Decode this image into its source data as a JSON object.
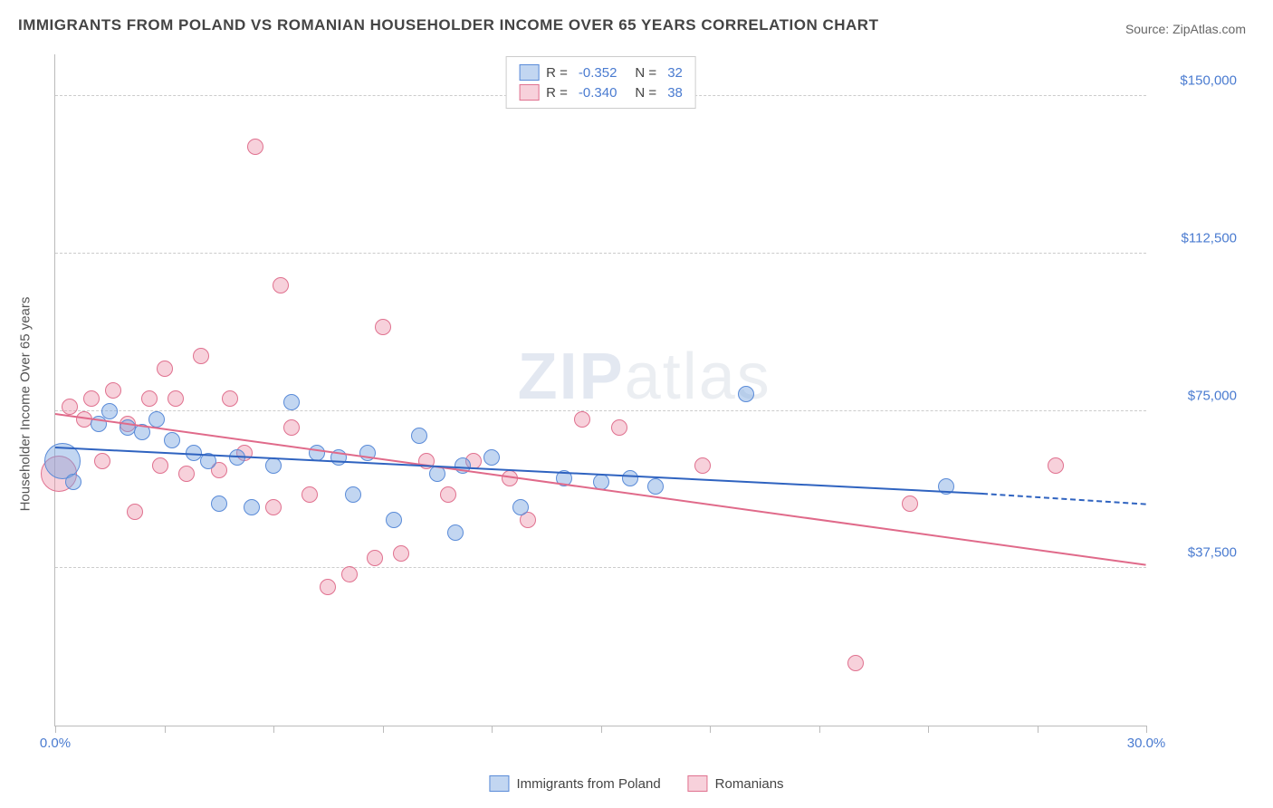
{
  "title": "IMMIGRANTS FROM POLAND VS ROMANIAN HOUSEHOLDER INCOME OVER 65 YEARS CORRELATION CHART",
  "source": "Source: ZipAtlas.com",
  "watermark_bold": "ZIP",
  "watermark_rest": "atlas",
  "y_axis_title": "Householder Income Over 65 years",
  "x_range": [
    0,
    30
  ],
  "y_range": [
    0,
    160000
  ],
  "x_min_label": "0.0%",
  "x_max_label": "30.0%",
  "y_ticks": [
    {
      "v": 37500,
      "label": "$37,500"
    },
    {
      "v": 75000,
      "label": "$75,000"
    },
    {
      "v": 112500,
      "label": "$112,500"
    },
    {
      "v": 150000,
      "label": "$150,000"
    }
  ],
  "x_tick_positions": [
    0,
    3,
    6,
    9,
    12,
    15,
    18,
    21,
    24,
    27,
    30
  ],
  "colors": {
    "blue_fill": "rgba(120,165,225,0.45)",
    "blue_stroke": "#5a8bd8",
    "pink_fill": "rgba(235,140,165,0.40)",
    "pink_stroke": "#e0718f",
    "blue_line": "#2f63c0",
    "pink_line": "#e06a8a",
    "tick_text": "#4a7bd0"
  },
  "marker_radius": 9,
  "large_marker_radius": 20,
  "series_a": {
    "name": "Immigrants from Poland",
    "R": "-0.352",
    "N": "32",
    "trend": {
      "x1": 0,
      "y1": 66000,
      "x2": 25.5,
      "y2": 55000,
      "dash_to": 30,
      "dash_y": 52500
    },
    "points": [
      [
        0.2,
        63000,
        20
      ],
      [
        0.5,
        58000,
        9
      ],
      [
        1.2,
        72000,
        9
      ],
      [
        1.5,
        75000,
        9
      ],
      [
        2.0,
        71000,
        9
      ],
      [
        2.4,
        70000,
        9
      ],
      [
        2.8,
        73000,
        9
      ],
      [
        3.2,
        68000,
        9
      ],
      [
        3.8,
        65000,
        9
      ],
      [
        4.2,
        63000,
        9
      ],
      [
        4.5,
        53000,
        9
      ],
      [
        5.0,
        64000,
        9
      ],
      [
        5.4,
        52000,
        9
      ],
      [
        6.0,
        62000,
        9
      ],
      [
        6.5,
        77000,
        9
      ],
      [
        7.2,
        65000,
        9
      ],
      [
        7.8,
        64000,
        9
      ],
      [
        8.2,
        55000,
        9
      ],
      [
        8.6,
        65000,
        9
      ],
      [
        9.3,
        49000,
        9
      ],
      [
        10.0,
        69000,
        9
      ],
      [
        10.5,
        60000,
        9
      ],
      [
        11.0,
        46000,
        9
      ],
      [
        11.2,
        62000,
        9
      ],
      [
        12.0,
        64000,
        9
      ],
      [
        12.8,
        52000,
        9
      ],
      [
        14.0,
        59000,
        9
      ],
      [
        15.0,
        58000,
        9
      ],
      [
        15.8,
        59000,
        9
      ],
      [
        16.5,
        57000,
        9
      ],
      [
        19.0,
        79000,
        9
      ],
      [
        24.5,
        57000,
        9
      ]
    ]
  },
  "series_b": {
    "name": "Romanians",
    "R": "-0.340",
    "N": "38",
    "trend": {
      "x1": 0,
      "y1": 74000,
      "x2": 30,
      "y2": 38000
    },
    "points": [
      [
        0.1,
        60000,
        20
      ],
      [
        0.4,
        76000,
        9
      ],
      [
        0.8,
        73000,
        9
      ],
      [
        1.0,
        78000,
        9
      ],
      [
        1.3,
        63000,
        9
      ],
      [
        1.6,
        80000,
        9
      ],
      [
        2.0,
        72000,
        9
      ],
      [
        2.2,
        51000,
        9
      ],
      [
        2.6,
        78000,
        9
      ],
      [
        2.9,
        62000,
        9
      ],
      [
        3.0,
        85000,
        9
      ],
      [
        3.3,
        78000,
        9
      ],
      [
        3.6,
        60000,
        9
      ],
      [
        4.0,
        88000,
        9
      ],
      [
        4.5,
        61000,
        9
      ],
      [
        4.8,
        78000,
        9
      ],
      [
        5.2,
        65000,
        9
      ],
      [
        5.5,
        138000,
        9
      ],
      [
        6.0,
        52000,
        9
      ],
      [
        6.2,
        105000,
        9
      ],
      [
        6.5,
        71000,
        9
      ],
      [
        7.0,
        55000,
        9
      ],
      [
        7.5,
        33000,
        9
      ],
      [
        8.1,
        36000,
        9
      ],
      [
        8.8,
        40000,
        9
      ],
      [
        9.0,
        95000,
        9
      ],
      [
        9.5,
        41000,
        9
      ],
      [
        10.2,
        63000,
        9
      ],
      [
        10.8,
        55000,
        9
      ],
      [
        11.5,
        63000,
        9
      ],
      [
        12.5,
        59000,
        9
      ],
      [
        13.0,
        49000,
        9
      ],
      [
        14.5,
        73000,
        9
      ],
      [
        15.5,
        71000,
        9
      ],
      [
        17.8,
        62000,
        9
      ],
      [
        22.0,
        15000,
        9
      ],
      [
        23.5,
        53000,
        9
      ],
      [
        27.5,
        62000,
        9
      ]
    ]
  },
  "legend_top_labels": {
    "R": "R =",
    "N": "N ="
  }
}
